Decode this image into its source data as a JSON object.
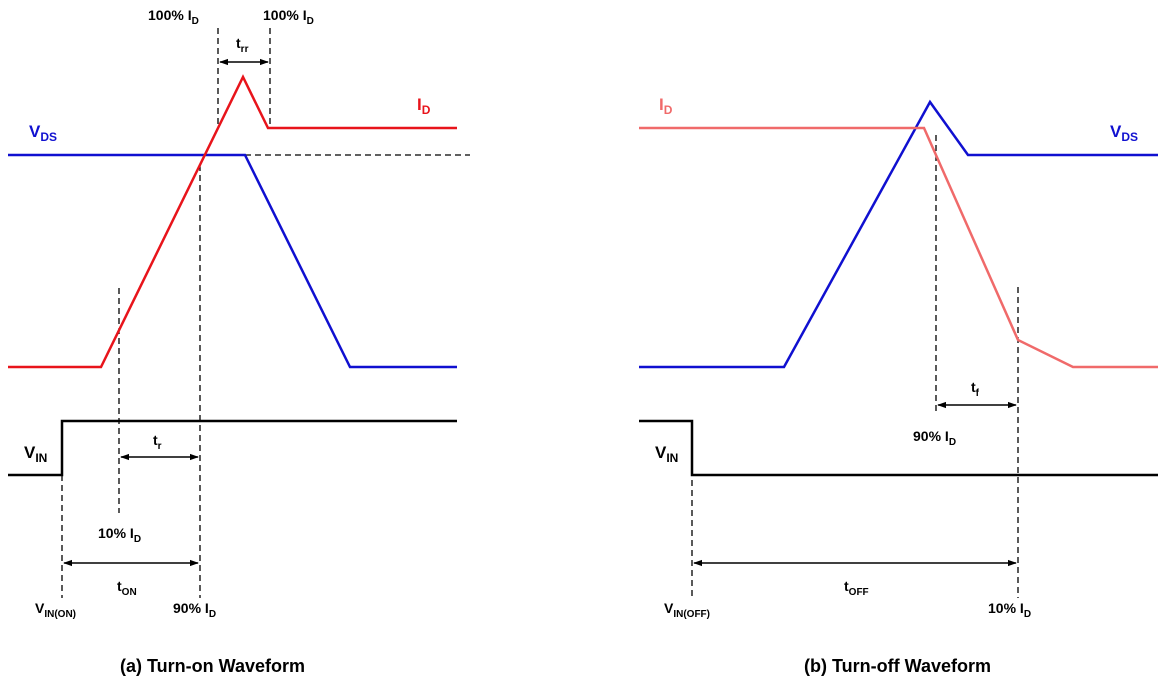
{
  "colors": {
    "id_turn_on": "#e8141b",
    "id_turn_off": "#f06a6a",
    "vds": "#1010d0",
    "vin": "#000000"
  },
  "panel_a": {
    "caption": "(a) Turn-on Waveform",
    "label_id_main": "I",
    "label_id_sub": "D",
    "label_vds_main": "V",
    "label_vds_sub": "DS",
    "label_vin_main": "V",
    "label_vin_sub": "IN",
    "trr_main": "t",
    "trr_sub": "rr",
    "tr_main": "t",
    "tr_sub": "r",
    "ton_main": "t",
    "ton_sub": "ON",
    "peak_left_main": "100% I",
    "peak_left_sub": "D",
    "peak_right_main": "100% I",
    "peak_right_sub": "D",
    "pct10_main": "10% I",
    "pct10_sub": "D",
    "pct90_main": "90% I",
    "pct90_sub": "D",
    "vin_on_main": "V",
    "vin_on_sub": "IN(ON)"
  },
  "panel_b": {
    "caption": "(b) Turn-off Waveform",
    "label_id_main": "I",
    "label_id_sub": "D",
    "label_vds_main": "V",
    "label_vds_sub": "DS",
    "label_vin_main": "V",
    "label_vin_sub": "IN",
    "tf_main": "t",
    "tf_sub": "f",
    "toff_main": "t",
    "toff_sub": "OFF",
    "pct90_main": "90% I",
    "pct90_sub": "D",
    "pct10_main": "10% I",
    "pct10_sub": "D",
    "vin_off_main": "V",
    "vin_off_sub": "IN(OFF)"
  }
}
